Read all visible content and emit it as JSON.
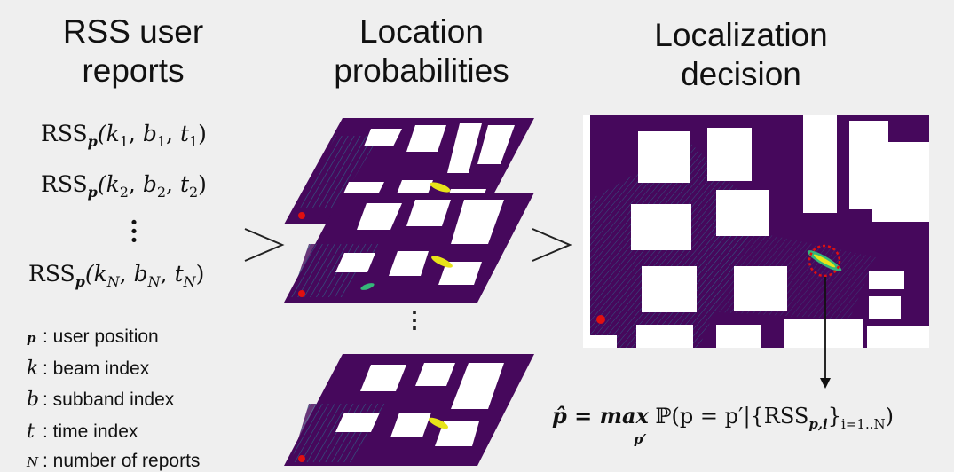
{
  "headings": {
    "col1_line1": "RSS user",
    "col1_line2": "reports",
    "col2_line1": "Location",
    "col2_line2": "probabilities",
    "col3_line1": "Localization",
    "col3_line2": "decision"
  },
  "reports": [
    {
      "prefix": "RSS",
      "sub": "p",
      "args": "(k",
      "i": "1",
      "b": "1",
      "t": "1"
    },
    {
      "prefix": "RSS",
      "sub": "p",
      "args": "(k",
      "i": "2",
      "b": "2",
      "t": "2"
    },
    {
      "prefix": "RSS",
      "sub": "p",
      "args": "(k",
      "i": "N",
      "b": "N",
      "t": "N"
    }
  ],
  "legend": [
    {
      "symbol": "p",
      "text": ": user position"
    },
    {
      "symbol": "k",
      "text": ": beam index"
    },
    {
      "symbol": "b",
      "text": ": subband index"
    },
    {
      "symbol": "t",
      "text": ": time index"
    },
    {
      "symbol": "N",
      "text": ": number of reports"
    }
  ],
  "formula": {
    "lhs": "p̂ = max",
    "under": "p′",
    "rhs": "ℙ(p = p′|{RSS",
    "sub": "p,i",
    "tail": "}",
    "range": "i=1..N",
    "close": ")"
  },
  "colors": {
    "heatmap_bg": "#46085c",
    "building": "#ffffff",
    "hotspot_yellow": "#e8e419",
    "hotspot_green": "#35b779",
    "marker_red": "#e01010"
  }
}
